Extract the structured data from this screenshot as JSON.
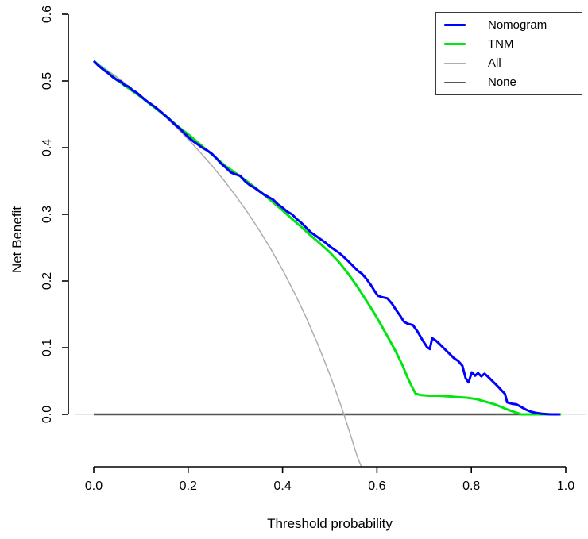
{
  "figure": {
    "background": "#ffffff"
  },
  "chart_data": {
    "type": "line",
    "title": "",
    "xlabel": "Threshold probability",
    "ylabel": "Net Benefit",
    "x_ticks": [
      0.0,
      0.2,
      0.4,
      0.6,
      0.8,
      1.0
    ],
    "x_tick_labels": [
      "0.0",
      "0.2",
      "0.4",
      "0.6",
      "0.8",
      "1.0"
    ],
    "y_ticks": [
      0.0,
      0.1,
      0.2,
      0.3,
      0.4,
      0.5,
      0.6
    ],
    "y_tick_labels": [
      "0.0",
      "0.1",
      "0.2",
      "0.3",
      "0.4",
      "0.5",
      "0.6"
    ],
    "xlim": [
      -0.04,
      1.04
    ],
    "ylim": [
      -0.08,
      0.626
    ],
    "grid": false,
    "legend_position": "top-right",
    "zero_line": {
      "value": 0.0,
      "color": "#e8e8e8",
      "width": 2
    },
    "series": [
      {
        "name": "Nomogram",
        "color": "#0000ff",
        "width": 3,
        "points": [
          [
            0.0,
            0.53
          ],
          [
            0.01,
            0.523
          ],
          [
            0.02,
            0.517
          ],
          [
            0.03,
            0.512
          ],
          [
            0.04,
            0.506
          ],
          [
            0.05,
            0.501
          ],
          [
            0.058,
            0.499
          ],
          [
            0.065,
            0.494
          ],
          [
            0.075,
            0.491
          ],
          [
            0.082,
            0.486
          ],
          [
            0.09,
            0.483
          ],
          [
            0.1,
            0.477
          ],
          [
            0.11,
            0.471
          ],
          [
            0.12,
            0.466
          ],
          [
            0.13,
            0.461
          ],
          [
            0.14,
            0.455
          ],
          [
            0.15,
            0.449
          ],
          [
            0.16,
            0.443
          ],
          [
            0.17,
            0.436
          ],
          [
            0.18,
            0.43
          ],
          [
            0.19,
            0.423
          ],
          [
            0.2,
            0.416
          ],
          [
            0.21,
            0.41
          ],
          [
            0.22,
            0.405
          ],
          [
            0.23,
            0.4
          ],
          [
            0.24,
            0.396
          ],
          [
            0.25,
            0.391
          ],
          [
            0.26,
            0.384
          ],
          [
            0.27,
            0.376
          ],
          [
            0.28,
            0.37
          ],
          [
            0.29,
            0.363
          ],
          [
            0.3,
            0.36
          ],
          [
            0.31,
            0.358
          ],
          [
            0.32,
            0.35
          ],
          [
            0.33,
            0.344
          ],
          [
            0.34,
            0.34
          ],
          [
            0.35,
            0.335
          ],
          [
            0.36,
            0.33
          ],
          [
            0.37,
            0.326
          ],
          [
            0.38,
            0.322
          ],
          [
            0.39,
            0.315
          ],
          [
            0.4,
            0.31
          ],
          [
            0.41,
            0.304
          ],
          [
            0.42,
            0.3
          ],
          [
            0.43,
            0.293
          ],
          [
            0.44,
            0.287
          ],
          [
            0.45,
            0.28
          ],
          [
            0.46,
            0.273
          ],
          [
            0.47,
            0.268
          ],
          [
            0.48,
            0.263
          ],
          [
            0.49,
            0.258
          ],
          [
            0.5,
            0.252
          ],
          [
            0.51,
            0.247
          ],
          [
            0.52,
            0.242
          ],
          [
            0.53,
            0.236
          ],
          [
            0.54,
            0.229
          ],
          [
            0.55,
            0.222
          ],
          [
            0.56,
            0.215
          ],
          [
            0.568,
            0.211
          ],
          [
            0.578,
            0.203
          ],
          [
            0.587,
            0.194
          ],
          [
            0.595,
            0.185
          ],
          [
            0.602,
            0.178
          ],
          [
            0.61,
            0.176
          ],
          [
            0.622,
            0.174
          ],
          [
            0.632,
            0.166
          ],
          [
            0.642,
            0.155
          ],
          [
            0.65,
            0.147
          ],
          [
            0.657,
            0.139
          ],
          [
            0.665,
            0.136
          ],
          [
            0.676,
            0.134
          ],
          [
            0.686,
            0.124
          ],
          [
            0.696,
            0.112
          ],
          [
            0.706,
            0.101
          ],
          [
            0.712,
            0.098
          ],
          [
            0.717,
            0.114
          ],
          [
            0.724,
            0.111
          ],
          [
            0.732,
            0.106
          ],
          [
            0.742,
            0.099
          ],
          [
            0.752,
            0.092
          ],
          [
            0.762,
            0.085
          ],
          [
            0.772,
            0.08
          ],
          [
            0.781,
            0.073
          ],
          [
            0.788,
            0.054
          ],
          [
            0.794,
            0.048
          ],
          [
            0.801,
            0.063
          ],
          [
            0.808,
            0.058
          ],
          [
            0.814,
            0.062
          ],
          [
            0.821,
            0.057
          ],
          [
            0.828,
            0.061
          ],
          [
            0.836,
            0.056
          ],
          [
            0.846,
            0.049
          ],
          [
            0.856,
            0.042
          ],
          [
            0.864,
            0.036
          ],
          [
            0.871,
            0.031
          ],
          [
            0.876,
            0.018
          ],
          [
            0.886,
            0.016
          ],
          [
            0.896,
            0.015
          ],
          [
            0.906,
            0.011
          ],
          [
            0.916,
            0.007
          ],
          [
            0.926,
            0.004
          ],
          [
            0.938,
            0.002
          ],
          [
            0.95,
            0.001
          ],
          [
            0.968,
            0.0
          ],
          [
            0.988,
            0.0
          ]
        ]
      },
      {
        "name": "TNM",
        "color": "#00e60e",
        "width": 3,
        "points": [
          [
            0.0,
            0.53
          ],
          [
            0.02,
            0.518
          ],
          [
            0.04,
            0.507
          ],
          [
            0.06,
            0.496
          ],
          [
            0.08,
            0.486
          ],
          [
            0.1,
            0.476
          ],
          [
            0.12,
            0.465
          ],
          [
            0.14,
            0.454
          ],
          [
            0.16,
            0.443
          ],
          [
            0.18,
            0.431
          ],
          [
            0.2,
            0.42
          ],
          [
            0.22,
            0.408
          ],
          [
            0.24,
            0.396
          ],
          [
            0.26,
            0.384
          ],
          [
            0.28,
            0.372
          ],
          [
            0.3,
            0.362
          ],
          [
            0.32,
            0.352
          ],
          [
            0.34,
            0.341
          ],
          [
            0.36,
            0.33
          ],
          [
            0.38,
            0.318
          ],
          [
            0.4,
            0.306
          ],
          [
            0.42,
            0.293
          ],
          [
            0.44,
            0.281
          ],
          [
            0.46,
            0.268
          ],
          [
            0.48,
            0.256
          ],
          [
            0.5,
            0.243
          ],
          [
            0.52,
            0.228
          ],
          [
            0.54,
            0.21
          ],
          [
            0.56,
            0.19
          ],
          [
            0.58,
            0.168
          ],
          [
            0.6,
            0.145
          ],
          [
            0.62,
            0.12
          ],
          [
            0.64,
            0.094
          ],
          [
            0.655,
            0.072
          ],
          [
            0.665,
            0.055
          ],
          [
            0.675,
            0.04
          ],
          [
            0.682,
            0.031
          ],
          [
            0.692,
            0.029
          ],
          [
            0.71,
            0.028
          ],
          [
            0.73,
            0.028
          ],
          [
            0.75,
            0.027
          ],
          [
            0.77,
            0.026
          ],
          [
            0.79,
            0.025
          ],
          [
            0.81,
            0.023
          ],
          [
            0.83,
            0.019
          ],
          [
            0.85,
            0.015
          ],
          [
            0.87,
            0.009
          ],
          [
            0.885,
            0.005
          ],
          [
            0.898,
            0.002
          ],
          [
            0.905,
            0.0
          ],
          [
            0.93,
            0.0
          ],
          [
            0.96,
            0.0
          ],
          [
            0.99,
            0.0
          ]
        ]
      },
      {
        "name": "All",
        "color": "#adadad",
        "width": 1.5,
        "points": [
          [
            0.0,
            0.53
          ],
          [
            0.025,
            0.518
          ],
          [
            0.05,
            0.5053
          ],
          [
            0.075,
            0.4919
          ],
          [
            0.1,
            0.4778
          ],
          [
            0.125,
            0.4629
          ],
          [
            0.15,
            0.4471
          ],
          [
            0.175,
            0.4303
          ],
          [
            0.2,
            0.4125
          ],
          [
            0.225,
            0.3935
          ],
          [
            0.25,
            0.3733
          ],
          [
            0.275,
            0.3517
          ],
          [
            0.3,
            0.3286
          ],
          [
            0.325,
            0.3037
          ],
          [
            0.35,
            0.2769
          ],
          [
            0.375,
            0.248
          ],
          [
            0.4,
            0.2167
          ],
          [
            0.425,
            0.1826
          ],
          [
            0.45,
            0.1455
          ],
          [
            0.475,
            0.1048
          ],
          [
            0.5,
            0.06
          ],
          [
            0.515,
            0.0308
          ],
          [
            0.53,
            0.0
          ],
          [
            0.545,
            -0.033
          ],
          [
            0.558,
            -0.0629
          ],
          [
            0.567,
            -0.0786
          ]
        ]
      },
      {
        "name": "None",
        "color": "#575757",
        "width": 2.5,
        "points": [
          [
            0.0,
            0.0
          ],
          [
            0.97,
            0.0
          ]
        ]
      }
    ]
  },
  "legend": {
    "items": [
      {
        "label": "Nomogram",
        "color": "#0000ff",
        "thickness": 3
      },
      {
        "label": "TNM",
        "color": "#00e60e",
        "thickness": 3
      },
      {
        "label": "All",
        "color": "#adadad",
        "thickness": 1
      },
      {
        "label": "None",
        "color": "#575757",
        "thickness": 2
      }
    ]
  }
}
